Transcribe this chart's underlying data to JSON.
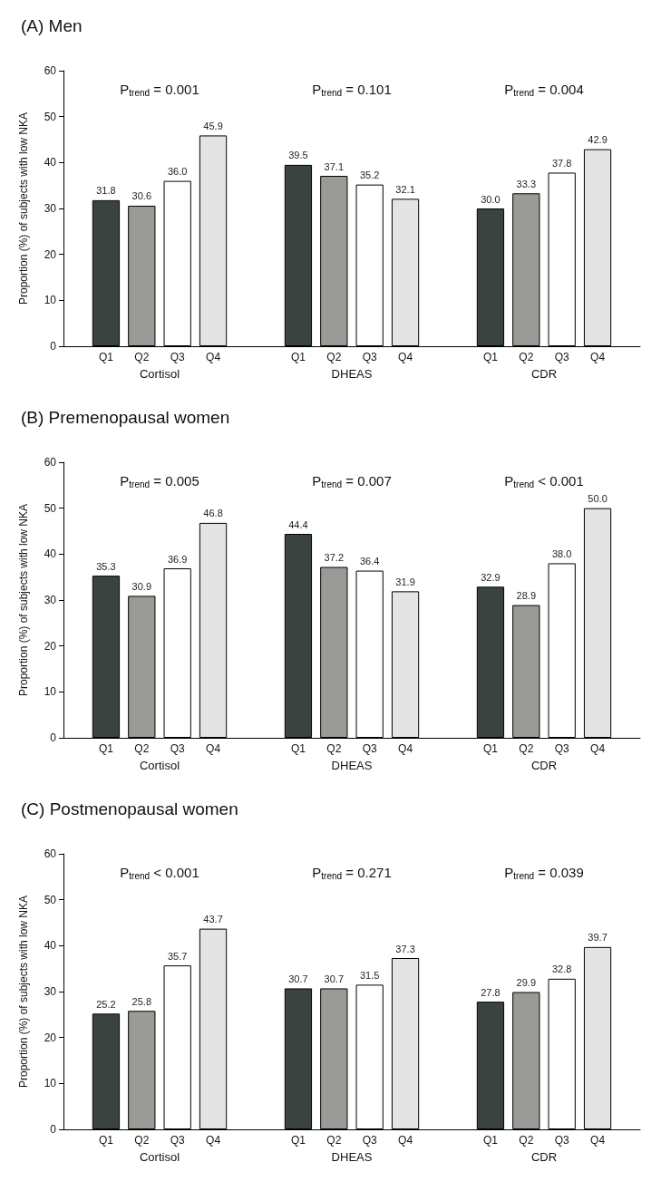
{
  "chart_data": [
    {
      "type": "bar",
      "title": "(A) Men",
      "ylabel": "Proportion (%) of subjects with low NKA",
      "categories": [
        "Cortisol",
        "DHEAS",
        "CDR"
      ],
      "series": [
        {
          "name": "Q1",
          "color": "#3b4341",
          "values": [
            31.8,
            39.5,
            30.0
          ],
          "value_labels": [
            "31.8",
            "39.5",
            "30.0"
          ]
        },
        {
          "name": "Q2",
          "color": "#9a9a96",
          "values": [
            30.6,
            37.1,
            33.3
          ],
          "value_labels": [
            "30.6",
            "37.1",
            "33.3"
          ]
        },
        {
          "name": "Q3",
          "color": "#ffffff",
          "values": [
            36.0,
            35.2,
            37.8
          ],
          "value_labels": [
            "36.0",
            "35.2",
            "37.8"
          ]
        },
        {
          "name": "Q4",
          "color": "#e4e4e4",
          "values": [
            45.9,
            32.1,
            42.9
          ],
          "value_labels": [
            "45.9",
            "32.1",
            "42.9"
          ]
        }
      ],
      "annotations": [
        "P$_{trend}$ = 0.001",
        "P$_{trend}$ = 0.101",
        "P$_{trend}$ = 0.004"
      ],
      "ylim": [
        0,
        60
      ],
      "yticks": [
        0,
        10,
        20,
        30,
        40,
        50,
        60
      ],
      "grid": false,
      "legend": false
    },
    {
      "type": "bar",
      "title": "(B) Premenopausal women",
      "ylabel": "Proportion (%) of subjects with low NKA",
      "categories": [
        "Cortisol",
        "DHEAS",
        "CDR"
      ],
      "series": [
        {
          "name": "Q1",
          "color": "#3b4341",
          "values": [
            35.3,
            44.4,
            32.9
          ],
          "value_labels": [
            "35.3",
            "44.4",
            "32.9"
          ]
        },
        {
          "name": "Q2",
          "color": "#9a9a96",
          "values": [
            30.9,
            37.2,
            28.9
          ],
          "value_labels": [
            "30.9",
            "37.2",
            "28.9"
          ]
        },
        {
          "name": "Q3",
          "color": "#ffffff",
          "values": [
            36.9,
            36.4,
            38.0
          ],
          "value_labels": [
            "36.9",
            "36.4",
            "38.0"
          ]
        },
        {
          "name": "Q4",
          "color": "#e4e4e4",
          "values": [
            46.8,
            31.9,
            50.0
          ],
          "value_labels": [
            "46.8",
            "31.9",
            "50.0"
          ]
        }
      ],
      "annotations": [
        "P$_{trend}$ = 0.005",
        "P$_{trend}$ = 0.007",
        "P$_{trend}$ < 0.001"
      ],
      "ylim": [
        0,
        60
      ],
      "yticks": [
        0,
        10,
        20,
        30,
        40,
        50,
        60
      ],
      "grid": false,
      "legend": false
    },
    {
      "type": "bar",
      "title": "(C) Postmenopausal women",
      "ylabel": "Proportion (%) of subjects with low NKA",
      "categories": [
        "Cortisol",
        "DHEAS",
        "CDR"
      ],
      "series": [
        {
          "name": "Q1",
          "color": "#3b4341",
          "values": [
            25.2,
            30.7,
            27.8
          ],
          "value_labels": [
            "25.2",
            "30.7",
            "27.8"
          ]
        },
        {
          "name": "Q2",
          "color": "#9a9a96",
          "values": [
            25.8,
            30.7,
            29.9
          ],
          "value_labels": [
            "25.8",
            "30.7",
            "29.9"
          ]
        },
        {
          "name": "Q3",
          "color": "#ffffff",
          "values": [
            35.7,
            31.5,
            32.8
          ],
          "value_labels": [
            "35.7",
            "31.5",
            "32.8"
          ]
        },
        {
          "name": "Q4",
          "color": "#e4e4e4",
          "values": [
            43.7,
            37.3,
            39.7
          ],
          "value_labels": [
            "43.7",
            "37.3",
            "39.7"
          ]
        }
      ],
      "annotations": [
        "P$_{trend}$ < 0.001",
        "P$_{trend}$ = 0.271",
        "P$_{trend}$ = 0.039"
      ],
      "ylim": [
        0,
        60
      ],
      "yticks": [
        0,
        10,
        20,
        30,
        40,
        50,
        60
      ],
      "grid": false,
      "legend": false
    }
  ]
}
